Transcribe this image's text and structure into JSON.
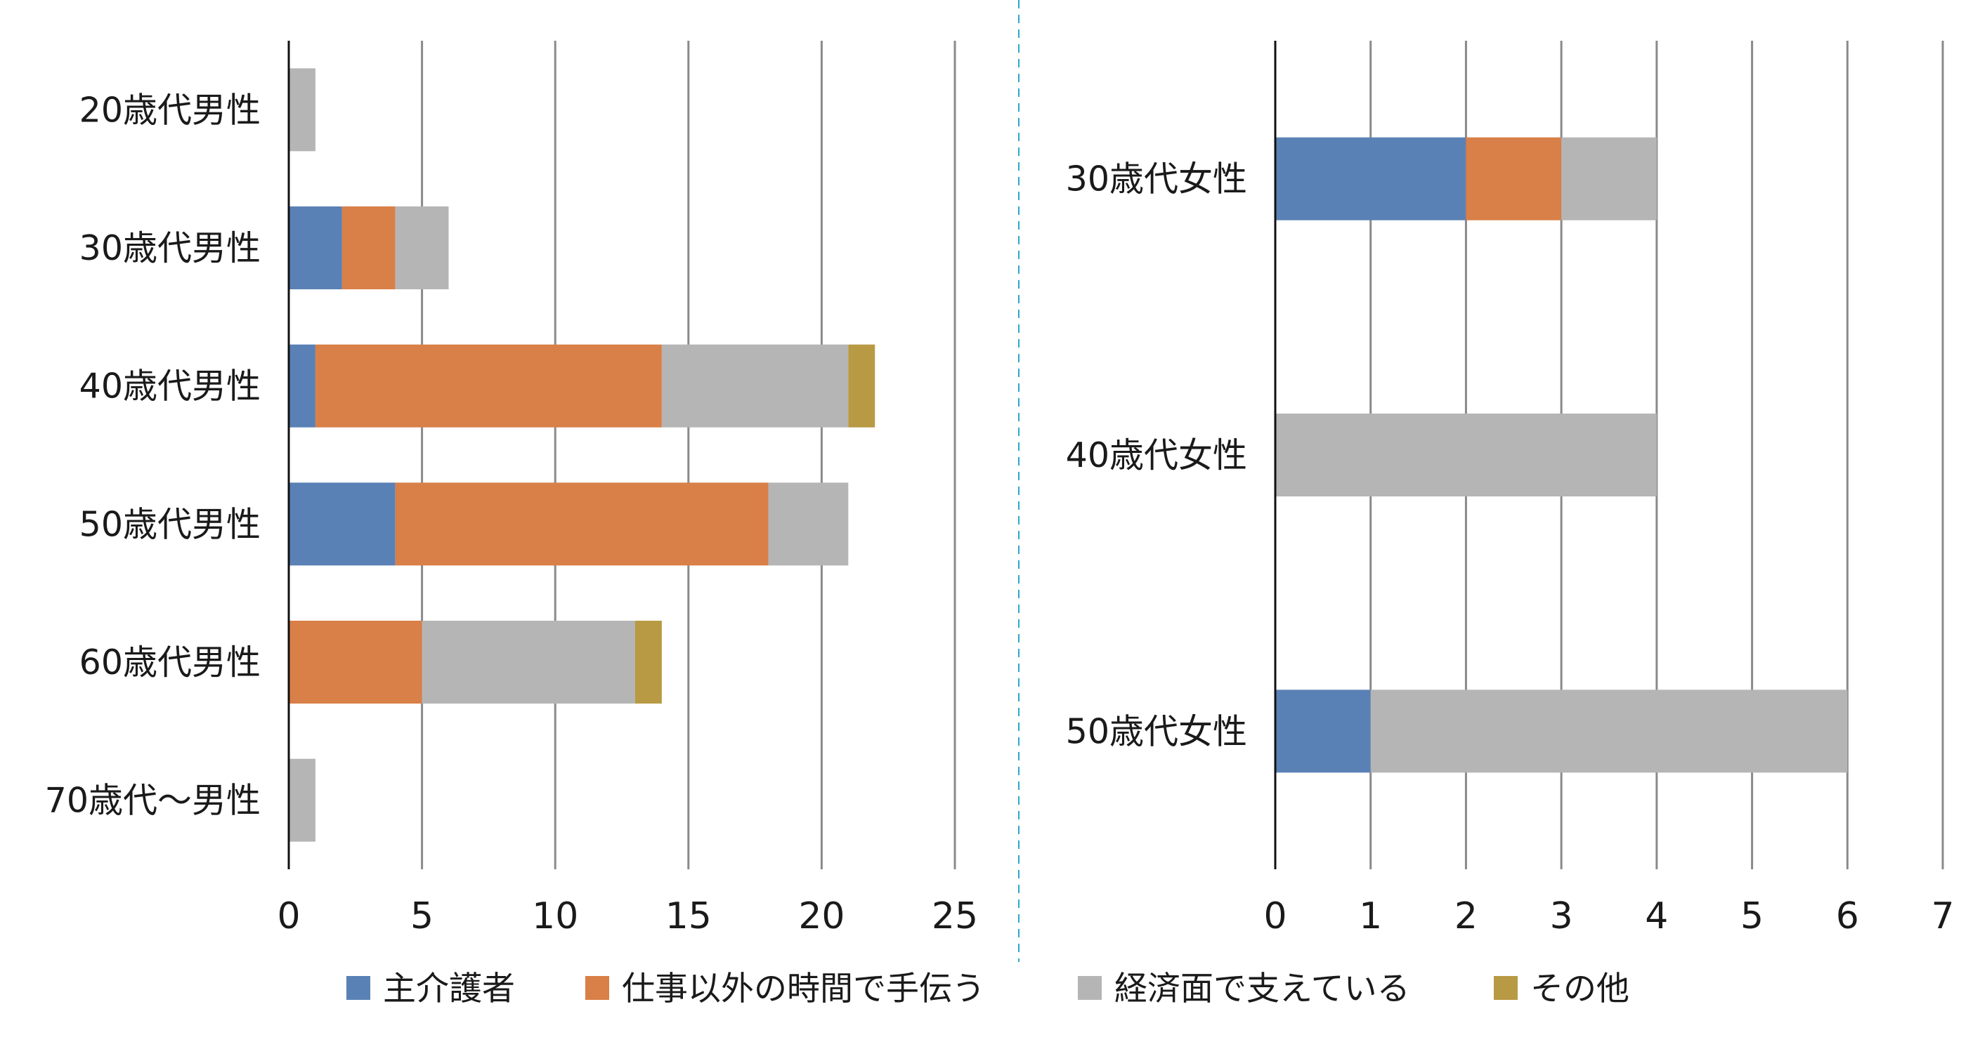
{
  "colors": {
    "primary_caregiver": "#5a81b5",
    "help_outside_work": "#d97f48",
    "financial_support": "#b5b5b5",
    "other": "#b89a44",
    "grid": "#8a8a8a",
    "axis": "#111111",
    "divider": "#29a9c9"
  },
  "legend": {
    "items": [
      {
        "label": "主介護者",
        "color": "#5a81b5"
      },
      {
        "label": "仕事以外の時間で手伝う",
        "color": "#d97f48"
      },
      {
        "label": "経済面で支えている",
        "color": "#b5b5b5"
      },
      {
        "label": "その他",
        "color": "#b89a44"
      }
    ]
  },
  "chart_data": [
    {
      "type": "bar",
      "orientation": "horizontal",
      "stacked": true,
      "categories": [
        "20歳代男性",
        "30歳代男性",
        "40歳代男性",
        "50歳代男性",
        "60歳代男性",
        "70歳代～男性"
      ],
      "series": [
        {
          "name": "主介護者",
          "values": [
            0,
            2,
            1,
            4,
            0,
            0
          ]
        },
        {
          "name": "仕事以外の時間で手伝う",
          "values": [
            0,
            2,
            13,
            14,
            5,
            0
          ]
        },
        {
          "name": "経済面で支えている",
          "values": [
            1,
            2,
            7,
            3,
            8,
            1
          ]
        },
        {
          "name": "その他",
          "values": [
            0,
            0,
            1,
            0,
            1,
            0
          ]
        }
      ],
      "xlim": [
        0,
        25
      ],
      "xticks": [
        "0",
        "5",
        "10",
        "15",
        "20",
        "25"
      ],
      "grid": "vertical",
      "legend": "bottom"
    },
    {
      "type": "bar",
      "orientation": "horizontal",
      "stacked": true,
      "categories": [
        "30歳代女性",
        "40歳代女性",
        "50歳代女性"
      ],
      "series": [
        {
          "name": "主介護者",
          "values": [
            2,
            0,
            1
          ]
        },
        {
          "name": "仕事以外の時間で手伝う",
          "values": [
            1,
            0,
            0
          ]
        },
        {
          "name": "経済面で支えている",
          "values": [
            1,
            4,
            5
          ]
        },
        {
          "name": "その他",
          "values": [
            0,
            0,
            0
          ]
        }
      ],
      "xlim": [
        0,
        7
      ],
      "xticks": [
        "0",
        "1",
        "2",
        "3",
        "4",
        "5",
        "6",
        "7"
      ],
      "grid": "vertical",
      "legend": "bottom"
    }
  ]
}
